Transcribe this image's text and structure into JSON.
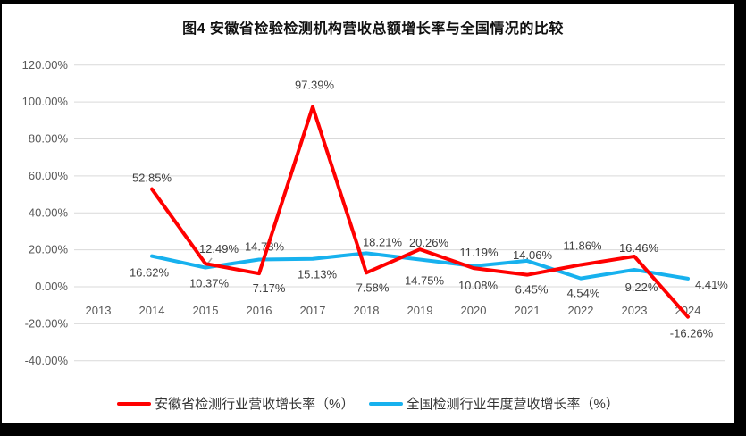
{
  "title": "图4 安徽省检验检测机构营收总额增长率与全国情况的比较",
  "colors": {
    "anhui_line": "#FF0000",
    "national_line": "#17B1EE",
    "gridline": "#D9D9D9",
    "axis_text": "#595959",
    "data_label_text": "#404040",
    "leader_line": "#A6A6A6",
    "title_text": "#111111",
    "frame": "#000000"
  },
  "legend": {
    "items": [
      {
        "label": "安徽省检测行业营收增长率（%）",
        "color_key": "anhui_line"
      },
      {
        "label": "全国检测行业年度营收增长率（%）",
        "color_key": "national_line"
      }
    ]
  },
  "chart_data": {
    "type": "line",
    "title": "图4 安徽省检验检测机构营收总额增长率与全国情况的比较",
    "categories": [
      "2013",
      "2014",
      "2015",
      "2016",
      "2017",
      "2018",
      "2019",
      "2020",
      "2021",
      "2022",
      "2023",
      "2024"
    ],
    "ylim": [
      -40,
      120
    ],
    "ytick_step": 20,
    "yticks": [
      {
        "v": 120,
        "label": "120.00%"
      },
      {
        "v": 100,
        "label": "100.00%"
      },
      {
        "v": 80,
        "label": "80.00%"
      },
      {
        "v": 60,
        "label": "60.00%"
      },
      {
        "v": 40,
        "label": "40.00%"
      },
      {
        "v": 20,
        "label": "20.00%"
      },
      {
        "v": 0,
        "label": "0.00%"
      },
      {
        "v": -20,
        "label": "-20.00%"
      },
      {
        "v": -40,
        "label": "-40.00%"
      }
    ],
    "grid": true,
    "legend_position": "bottom",
    "series": [
      {
        "name": "安徽省检测行业营收增长率（%）",
        "color_key": "anhui_line",
        "x": [
          "2014",
          "2015",
          "2016",
          "2017",
          "2018",
          "2019",
          "2020",
          "2021",
          "2022",
          "2023",
          "2024"
        ],
        "values": [
          52.85,
          12.49,
          7.17,
          97.39,
          7.58,
          20.26,
          10.08,
          6.45,
          11.86,
          16.46,
          -16.26
        ],
        "labels": [
          "52.85%",
          "12.49%",
          "7.17%",
          "97.39%",
          "7.58%",
          "20.26%",
          "10.08%",
          "6.45%",
          "11.86%",
          "16.46%",
          "-16.26%"
        ]
      },
      {
        "name": "全国检测行业年度营收增长率（%）",
        "color_key": "national_line",
        "x": [
          "2014",
          "2015",
          "2016",
          "2017",
          "2018",
          "2019",
          "2020",
          "2021",
          "2022",
          "2023",
          "2024"
        ],
        "values": [
          16.62,
          10.37,
          14.73,
          15.13,
          18.21,
          14.75,
          11.19,
          14.06,
          4.54,
          9.22,
          4.41
        ],
        "labels": [
          "16.62%",
          "10.37%",
          "14.73%",
          "15.13%",
          "18.21%",
          "14.75%",
          "11.19%",
          "14.06%",
          "4.54%",
          "9.22%",
          "4.41%"
        ]
      }
    ]
  }
}
